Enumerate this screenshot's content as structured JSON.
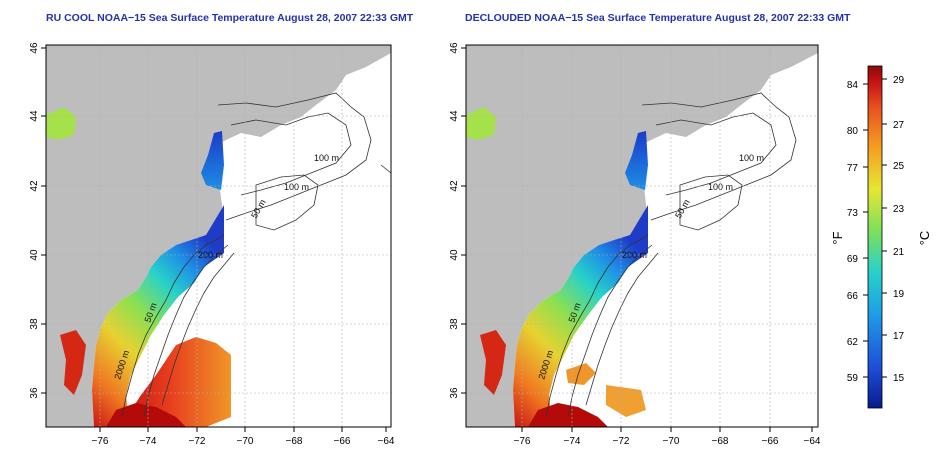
{
  "panels": [
    {
      "title": "RU COOL NOAA−15 Sea Surface Temperature August 28, 2007 22:33 GMT",
      "x_ticks": [
        "−76",
        "−74",
        "−72",
        "−70",
        "−68",
        "−66",
        "−64"
      ],
      "y_ticks": [
        "46",
        "44",
        "42",
        "40",
        "38",
        "36"
      ],
      "contour_labels": [
        "100 m",
        "100 m",
        "50 m",
        "200 m",
        "50 m",
        "2000 m"
      ]
    },
    {
      "title": "DECLOUDED NOAA−15 Sea Surface Temperature August 28, 2007 22:33 GMT",
      "x_ticks": [
        "−76",
        "−74",
        "−72",
        "−70",
        "−68",
        "−66",
        "−64"
      ],
      "y_ticks": [
        "46",
        "44",
        "42",
        "40",
        "38",
        "36"
      ],
      "contour_labels": [
        "100 m",
        "100 m",
        "50 m",
        "200 m",
        "50 m",
        "2000 m"
      ]
    }
  ],
  "colorbar": {
    "fahrenheit_label": "°F",
    "celsius_label": "°C",
    "fahrenheit_ticks": [
      "84",
      "80",
      "77",
      "73",
      "69",
      "66",
      "62",
      "59"
    ],
    "celsius_ticks": [
      "29",
      "27",
      "25",
      "23",
      "21",
      "19",
      "17",
      "15"
    ],
    "colors": [
      "#0a1a8c",
      "#1e4fd8",
      "#1ea0e6",
      "#28d2c8",
      "#7fe05a",
      "#e6e632",
      "#f5a020",
      "#e8501e",
      "#c81414",
      "#8c0a0a"
    ]
  },
  "map_colors": {
    "land": "#bdbdbd",
    "ocean": "#ffffff",
    "contour": "#333333",
    "grid": "#b0b0b0"
  }
}
